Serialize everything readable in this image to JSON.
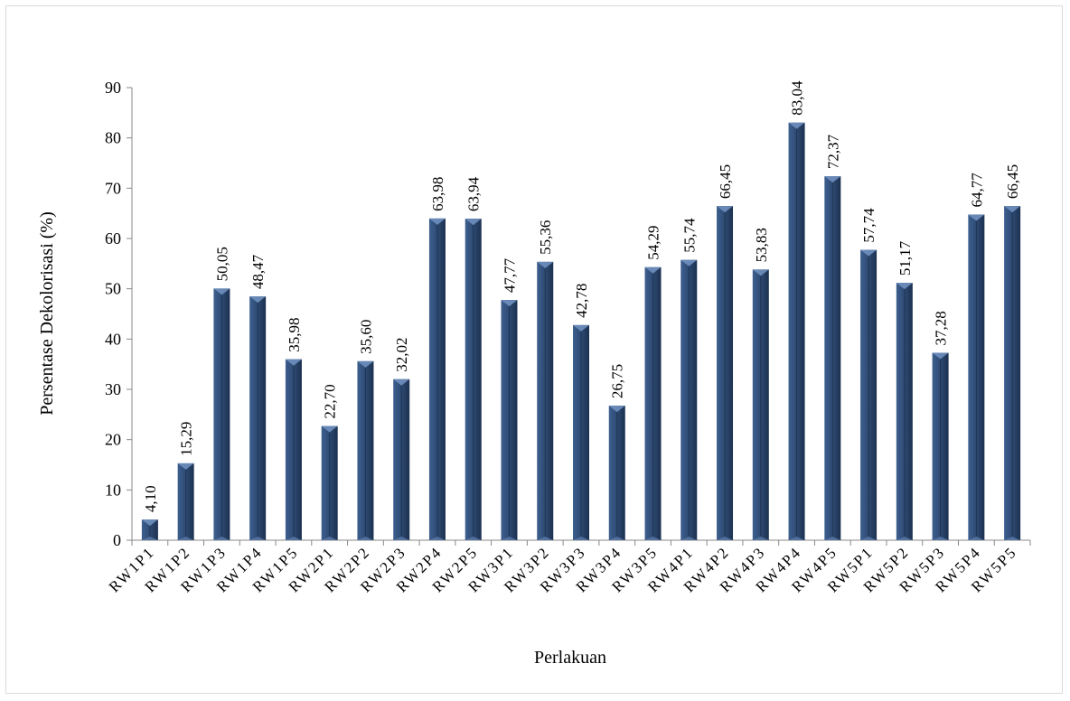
{
  "chart_data": {
    "type": "bar",
    "title": "",
    "xlabel": "Perlakuan",
    "ylabel": "Persentase Dekolorisasi (%)",
    "ylim": [
      0,
      90
    ],
    "ytick_step": 10,
    "ytick_labels": [
      "0",
      "10",
      "20",
      "30",
      "40",
      "50",
      "60",
      "70",
      "80",
      "90"
    ],
    "bar_color": "#2e4a72",
    "grid": false,
    "legend": "none",
    "categories": [
      "RW1P1",
      "RW1P2",
      "RW1P3",
      "RW1P4",
      "RW1P5",
      "RW2P1",
      "RW2P2",
      "RW2P3",
      "RW2P4",
      "RW2P5",
      "RW3P1",
      "RW3P2",
      "RW3P3",
      "RW3P4",
      "RW3P5",
      "RW4P1",
      "RW4P2",
      "RW4P3",
      "RW4P4",
      "RW4P5",
      "RW5P1",
      "RW5P2",
      "RW5P3",
      "RW5P4",
      "RW5P5"
    ],
    "values": [
      4.1,
      15.29,
      50.05,
      48.47,
      35.98,
      22.7,
      35.6,
      32.02,
      63.98,
      63.94,
      47.77,
      55.36,
      42.78,
      26.75,
      54.29,
      55.74,
      66.45,
      53.83,
      83.04,
      72.37,
      57.74,
      51.17,
      37.28,
      64.77,
      66.45
    ],
    "data_labels": [
      "4,10",
      "15,29",
      "50,05",
      "48,47",
      "35,98",
      "22,70",
      "35,60",
      "32,02",
      "63,98",
      "63,94",
      "47,77",
      "55,36",
      "42,78",
      "26,75",
      "54,29",
      "55,74",
      "66,45",
      "53,83",
      "83,04",
      "72,37",
      "57,74",
      "51,17",
      "37,28",
      "64,77",
      "66,45"
    ]
  }
}
